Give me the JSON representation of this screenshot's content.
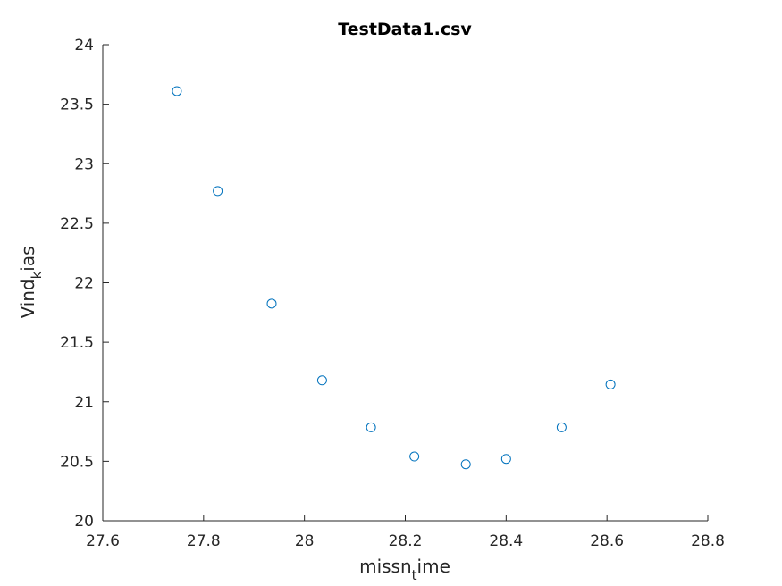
{
  "chart_data": {
    "type": "scatter",
    "title": "TestData1.csv",
    "xlabel": {
      "main": "missn",
      "sub": "t",
      "rest": "ime"
    },
    "ylabel": {
      "main": "Vind",
      "sub": "k",
      "rest": "ias"
    },
    "xlim": [
      27.6,
      28.8
    ],
    "ylim": [
      20,
      24
    ],
    "xticks": [
      27.6,
      27.8,
      28,
      28.2,
      28.4,
      28.6,
      28.8
    ],
    "xtick_labels": [
      "27.6",
      "27.8",
      "28",
      "28.2",
      "28.4",
      "28.6",
      "28.8"
    ],
    "yticks": [
      20,
      20.5,
      21,
      21.5,
      22,
      22.5,
      23,
      23.5,
      24
    ],
    "ytick_labels": [
      "20",
      "20.5",
      "21",
      "21.5",
      "22",
      "22.5",
      "23",
      "23.5",
      "24"
    ],
    "grid": false,
    "marker": "open-circle",
    "marker_color": "#0072BD",
    "axis_color": "#262626",
    "x": [
      27.747,
      27.828,
      27.935,
      28.035,
      28.132,
      28.218,
      28.32,
      28.4,
      28.51,
      28.607
    ],
    "y": [
      23.61,
      22.77,
      21.825,
      21.18,
      20.785,
      20.54,
      20.475,
      20.52,
      20.785,
      21.145
    ]
  }
}
